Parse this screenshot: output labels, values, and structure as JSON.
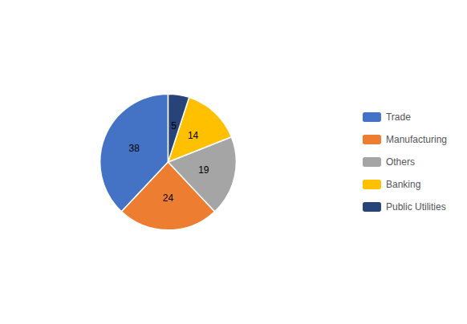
{
  "chart_data": {
    "type": "pie",
    "categories": [
      "Trade",
      "Manufacturing",
      "Others",
      "Banking",
      "Public Utilities"
    ],
    "values": [
      38,
      24,
      19,
      14,
      5
    ],
    "colors": [
      "#4472C4",
      "#ED7D31",
      "#A5A5A5",
      "#FFC000",
      "#264478"
    ],
    "data_labels": true,
    "legend": "right"
  }
}
